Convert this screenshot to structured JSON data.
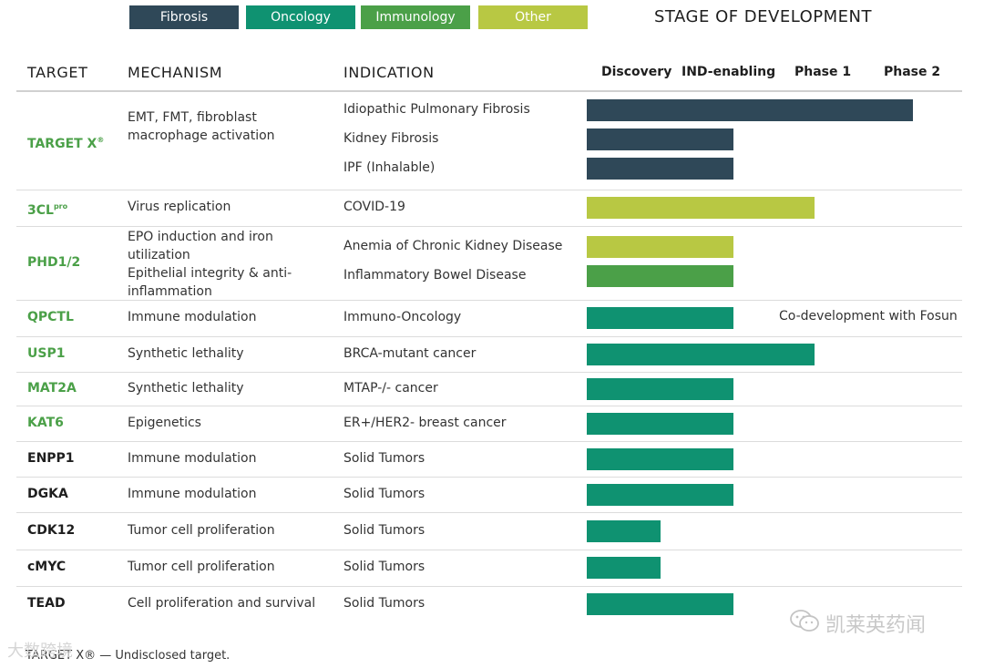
{
  "legend": [
    {
      "label": "Fibrosis",
      "color": "#2f4858"
    },
    {
      "label": "Oncology",
      "color": "#0f9271"
    },
    {
      "label": "Immunology",
      "color": "#4ba048"
    },
    {
      "label": "Other",
      "color": "#b8c843"
    }
  ],
  "stage_title": "STAGE OF DEVELOPMENT",
  "headers": {
    "target": "TARGET",
    "mechanism": "MECHANISM",
    "indication": "INDICATION"
  },
  "stages": [
    "Discovery",
    "IND-enabling",
    "Phase 1",
    "Phase 2"
  ],
  "chart_data": {
    "type": "bar",
    "title": "STAGE OF DEVELOPMENT",
    "orientation": "horizontal",
    "x_scale": "development stage (Discovery=0 .. Phase 2=4, end of bar)",
    "xlim": [
      0,
      4.5
    ],
    "tick_labels": [
      "Discovery",
      "IND-enabling",
      "Phase 1",
      "Phase 2"
    ],
    "legend": [
      "Fibrosis",
      "Oncology",
      "Immunology",
      "Other"
    ],
    "series": [
      {
        "target": "TARGET X",
        "target_sup": "®",
        "target_color": "#4ba048",
        "mechanism": "EMT, FMT, fibroblast macrophage activation",
        "indications": [
          {
            "name": "Idiopathic Pulmonary Fibrosis",
            "category": "Fibrosis",
            "color": "#2f4858",
            "value": 4.45
          },
          {
            "name": "Kidney Fibrosis",
            "category": "Fibrosis",
            "color": "#2f4858",
            "value": 2.0
          },
          {
            "name": "IPF (Inhalable)",
            "category": "Fibrosis",
            "color": "#2f4858",
            "value": 2.0
          }
        ]
      },
      {
        "target": "3CL",
        "target_sup": "pro",
        "target_color": "#4ba048",
        "mechanism": "Virus replication",
        "indications": [
          {
            "name": "COVID-19",
            "category": "Other",
            "color": "#b8c843",
            "value": 3.1
          }
        ]
      },
      {
        "target": "PHD1/2",
        "target_sup": "",
        "target_color": "#4ba048",
        "mechanism": "EPO induction and iron utilization Epithelial integrity & anti-inflammation",
        "mechanism_lines": [
          "EPO induction and iron",
          "utilization",
          "Epithelial integrity & anti-",
          "inflammation"
        ],
        "indications": [
          {
            "name": "Anemia of Chronic Kidney Disease",
            "category": "Other",
            "color": "#b8c843",
            "value": 2.0
          },
          {
            "name": "Inflammatory Bowel Disease",
            "category": "Immunology",
            "color": "#4ba048",
            "value": 2.0
          }
        ]
      },
      {
        "target": "QPCTL",
        "target_sup": "",
        "target_color": "#4ba048",
        "mechanism": "Immune modulation",
        "indications": [
          {
            "name": "Immuno-Oncology",
            "category": "Oncology",
            "color": "#0f9271",
            "value": 2.0,
            "note": "Co-development with Fosun"
          }
        ]
      },
      {
        "target": "USP1",
        "target_sup": "",
        "target_color": "#4ba048",
        "mechanism": "Synthetic lethality",
        "indications": [
          {
            "name": "BRCA-mutant cancer",
            "category": "Oncology",
            "color": "#0f9271",
            "value": 3.1
          }
        ]
      },
      {
        "target": "MAT2A",
        "target_sup": "",
        "target_color": "#4ba048",
        "mechanism": "Synthetic lethality",
        "indications": [
          {
            "name": "MTAP-/- cancer",
            "category": "Oncology",
            "color": "#0f9271",
            "value": 2.0
          }
        ]
      },
      {
        "target": "KAT6",
        "target_sup": "",
        "target_color": "#4ba048",
        "mechanism": "Epigenetics",
        "indications": [
          {
            "name": "ER+/HER2- breast cancer",
            "category": "Oncology",
            "color": "#0f9271",
            "value": 2.0
          }
        ]
      },
      {
        "target": "ENPP1",
        "target_sup": "",
        "target_color": "#1e1e1e",
        "mechanism": "Immune modulation",
        "indications": [
          {
            "name": "Solid Tumors",
            "category": "Oncology",
            "color": "#0f9271",
            "value": 2.0
          }
        ]
      },
      {
        "target": "DGKA",
        "target_sup": "",
        "target_color": "#1e1e1e",
        "mechanism": "Immune modulation",
        "indications": [
          {
            "name": "Solid Tumors",
            "category": "Oncology",
            "color": "#0f9271",
            "value": 2.0
          }
        ]
      },
      {
        "target": "CDK12",
        "target_sup": "",
        "target_color": "#1e1e1e",
        "mechanism": "Tumor cell proliferation",
        "indications": [
          {
            "name": "Solid Tumors",
            "category": "Oncology",
            "color": "#0f9271",
            "value": 1.0
          }
        ]
      },
      {
        "target": "cMYC",
        "target_sup": "",
        "target_color": "#1e1e1e",
        "mechanism": "Tumor cell proliferation",
        "indications": [
          {
            "name": "Solid Tumors",
            "category": "Oncology",
            "color": "#0f9271",
            "value": 1.0
          }
        ]
      },
      {
        "target": "TEAD",
        "target_sup": "",
        "target_color": "#1e1e1e",
        "mechanism": "Cell proliferation and survival",
        "indications": [
          {
            "name": "Solid Tumors",
            "category": "Oncology",
            "color": "#0f9271",
            "value": 2.0
          }
        ]
      }
    ]
  },
  "footnote": "TARGET X® — Undisclosed target.",
  "watermarks": {
    "left": "大数跨境",
    "right": "凯莱英药闻"
  }
}
